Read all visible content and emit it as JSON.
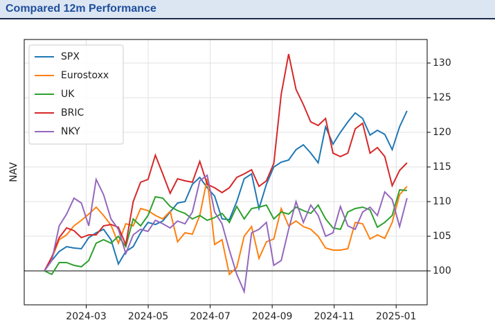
{
  "header": {
    "title": "Compared 12m Performance"
  },
  "chart_data": {
    "type": "line",
    "y_label": "NAV",
    "xlim": [
      "2024-01",
      "2025-02"
    ],
    "xticks": [
      "2024-03",
      "2024-05",
      "2024-07",
      "2024-09",
      "2024-11",
      "2025-01"
    ],
    "ylim": [
      95.1,
      133.4
    ],
    "yticks": [
      100,
      105,
      110,
      115,
      120,
      125,
      130
    ],
    "y_axis_side": "right",
    "grid": true,
    "legend": "upper-left",
    "hline": 100,
    "series": [
      {
        "name": "SPX",
        "color": "#1f77b4",
        "values": [
          100,
          101.5,
          102.8,
          103.5,
          103.3,
          103.2,
          104.8,
          105.5,
          106,
          104.5,
          101,
          102.8,
          103.5,
          105.5,
          107,
          106.7,
          107.2,
          108.5,
          109.8,
          110,
          112.5,
          113.5,
          112,
          110.8,
          107.5,
          107.4,
          110,
          113.3,
          114,
          109,
          112.5,
          115,
          115.7,
          116,
          117.5,
          118.2,
          117,
          115.6,
          120.8,
          118.3,
          120,
          121.5,
          122.8,
          122,
          119.6,
          120.3,
          119.7,
          117.5,
          120.8,
          123.1
        ]
      },
      {
        "name": "Eurostoxx",
        "color": "#ff7f0e",
        "values": [
          100,
          101.8,
          104.5,
          105.2,
          106.5,
          107.3,
          108.2,
          109.2,
          108,
          106.6,
          104,
          106.8,
          106.5,
          109,
          108.7,
          108,
          107.5,
          108.6,
          104.2,
          105.5,
          105.3,
          108,
          113.3,
          103.8,
          104.5,
          99.5,
          100.5,
          105,
          106.4,
          101.8,
          104.2,
          104.6,
          109,
          106.5,
          107.2,
          106.4,
          106,
          105,
          103.3,
          103,
          103,
          103.2,
          107,
          106.8,
          104.6,
          105.2,
          104.7,
          107,
          111,
          112.2
        ]
      },
      {
        "name": "UK",
        "color": "#2ca02c",
        "values": [
          100,
          99.5,
          101.2,
          101.2,
          100.8,
          100.6,
          101.5,
          104,
          104.5,
          104,
          105,
          103.5,
          107.5,
          106.5,
          108,
          110.7,
          110.5,
          109.3,
          108.7,
          108.3,
          107.5,
          108,
          107.3,
          107.7,
          108.3,
          107,
          109.3,
          107.5,
          109,
          109.2,
          109.5,
          107.5,
          108.5,
          108.2,
          109.2,
          108.7,
          108.3,
          109.5,
          107.5,
          106.2,
          106,
          108.5,
          109,
          109.2,
          108.8,
          106.3,
          107,
          108,
          111.7,
          111.6
        ]
      },
      {
        "name": "BRIC",
        "color": "#d62728",
        "values": [
          100,
          102,
          104.8,
          106.2,
          105.8,
          104.8,
          105.2,
          105.2,
          106.5,
          106.7,
          106.3,
          103.8,
          110,
          112.8,
          113.2,
          116.7,
          114,
          111.2,
          113.3,
          113,
          112.8,
          115.8,
          112.5,
          112,
          111.3,
          112,
          113.5,
          114,
          114.6,
          112.2,
          113,
          115.5,
          125.5,
          131.3,
          126.2,
          124,
          121.5,
          121,
          122,
          117,
          116.5,
          117,
          120.5,
          121.3,
          117,
          117.8,
          116.5,
          112.3,
          114.5,
          115.6
        ]
      },
      {
        "name": "NKY",
        "color": "#9467bd",
        "values": [
          100,
          101.5,
          106.5,
          108.2,
          110.5,
          109.8,
          106.5,
          113.2,
          111,
          107.5,
          106,
          102.5,
          105.2,
          106,
          105.7,
          107.3,
          106.8,
          106.2,
          107.2,
          106.8,
          108.5,
          113,
          113.8,
          108.5,
          106.8,
          103,
          99.5,
          97,
          105.5,
          106,
          107,
          100.8,
          101.5,
          106,
          110,
          107,
          109.5,
          108,
          105,
          105.5,
          109.3,
          106.5,
          106,
          108.5,
          109.2,
          108,
          111.4,
          110.3,
          106.4,
          110.5
        ]
      }
    ]
  }
}
